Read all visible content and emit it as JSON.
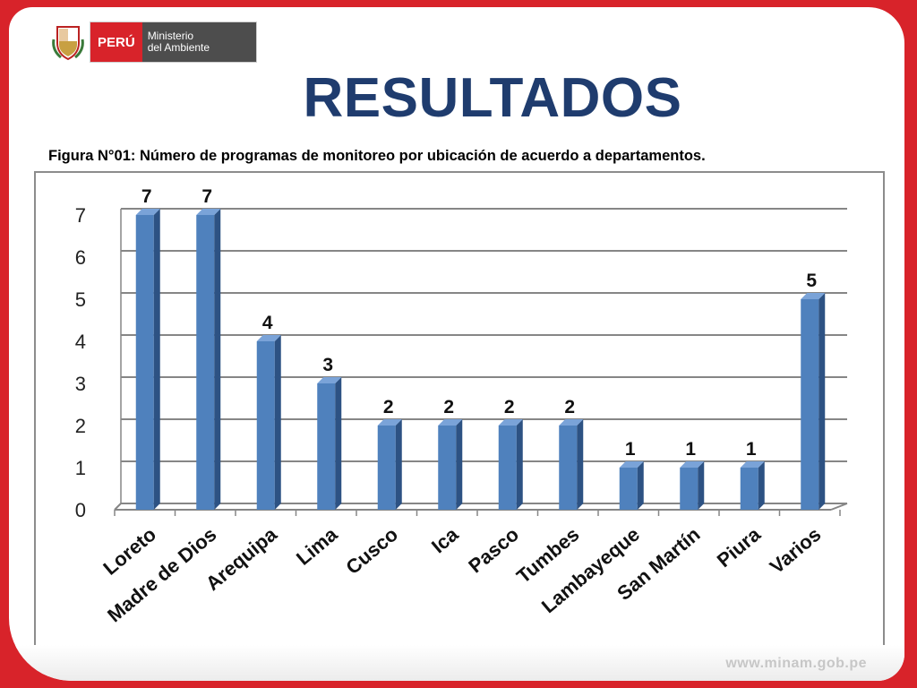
{
  "header": {
    "peru_label": "PERÚ",
    "ministry_line1": "Ministerio",
    "ministry_line2": "del Ambiente"
  },
  "slide": {
    "title": "RESULTADOS",
    "caption": "Figura N°01: Número de programas de monitoreo por ubicación de acuerdo a departamentos."
  },
  "footer": {
    "url": "www.minam.gob.pe"
  },
  "colors": {
    "bar_front": "#4f81bd",
    "bar_side": "#2d5283",
    "bar_top": "#7aa3d8",
    "title": "#1f3c6e",
    "frame": "#d8232a"
  },
  "chart_data": {
    "type": "bar",
    "categories": [
      "Loreto",
      "Madre de Dios",
      "Arequipa",
      "Lima",
      "Cusco",
      "Ica",
      "Pasco",
      "Tumbes",
      "Lambayeque",
      "San Martín",
      "Piura",
      "Varios"
    ],
    "values": [
      7,
      7,
      4,
      3,
      2,
      2,
      2,
      2,
      1,
      1,
      1,
      5
    ],
    "ylim": [
      0,
      7
    ],
    "yticks": [
      0,
      1,
      2,
      3,
      4,
      5,
      6,
      7
    ],
    "grid": true,
    "data_labels": true,
    "style": "3d-column"
  }
}
